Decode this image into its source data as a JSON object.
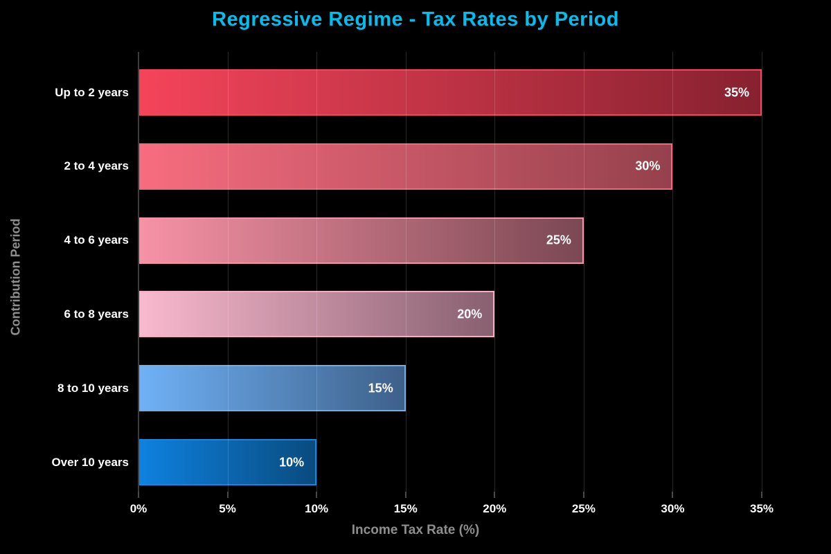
{
  "colors": {
    "background": "#000000",
    "title": "#00BFEF",
    "axis_label": "#8E8E8E",
    "tick_label": "#FFFFFF",
    "category_label": "#FFFFFF",
    "value_label": "#FFFFFF",
    "gridline": "rgba(255,255,255,0.16)",
    "spine": "#3D3D3D",
    "tick_mark": "#4A4A4A",
    "bars": [
      {
        "start": "#F4445A",
        "end": "#87212F",
        "border": "#F4455C"
      },
      {
        "start": "#F76D7F",
        "end": "#95414D",
        "border": "#F06A7C"
      },
      {
        "start": "#F792A5",
        "end": "#7A4853",
        "border": "#F492A8"
      },
      {
        "start": "#F9B9CE",
        "end": "#886070",
        "border": "#F6ACC3"
      },
      {
        "start": "#6FB1F6",
        "end": "#3E6089",
        "border": "#6FAEE9"
      },
      {
        "start": "#0E81E0",
        "end": "#094B7E",
        "border": "#1A84DE"
      }
    ]
  },
  "chart_data": {
    "type": "bar",
    "orientation": "horizontal",
    "title": "Regressive Regime - Tax Rates by Period",
    "xlabel": "Income Tax Rate (%)",
    "ylabel": "Contribution Period",
    "categories": [
      "Up to 2 years",
      "2 to 4 years",
      "4 to 6 years",
      "6 to 8 years",
      "8 to 10 years",
      "Over 10 years"
    ],
    "values": [
      35,
      30,
      25,
      20,
      15,
      10
    ],
    "value_labels": [
      "35%",
      "30%",
      "25%",
      "20%",
      "15%",
      "10%"
    ],
    "xtick_values": [
      0,
      5,
      10,
      15,
      20,
      25,
      30,
      35
    ],
    "xtick_labels": [
      "0%",
      "5%",
      "10%",
      "15%",
      "20%",
      "25%",
      "30%",
      "35%"
    ],
    "xlim": [
      0,
      38.1
    ],
    "grid": true,
    "legend": null
  }
}
